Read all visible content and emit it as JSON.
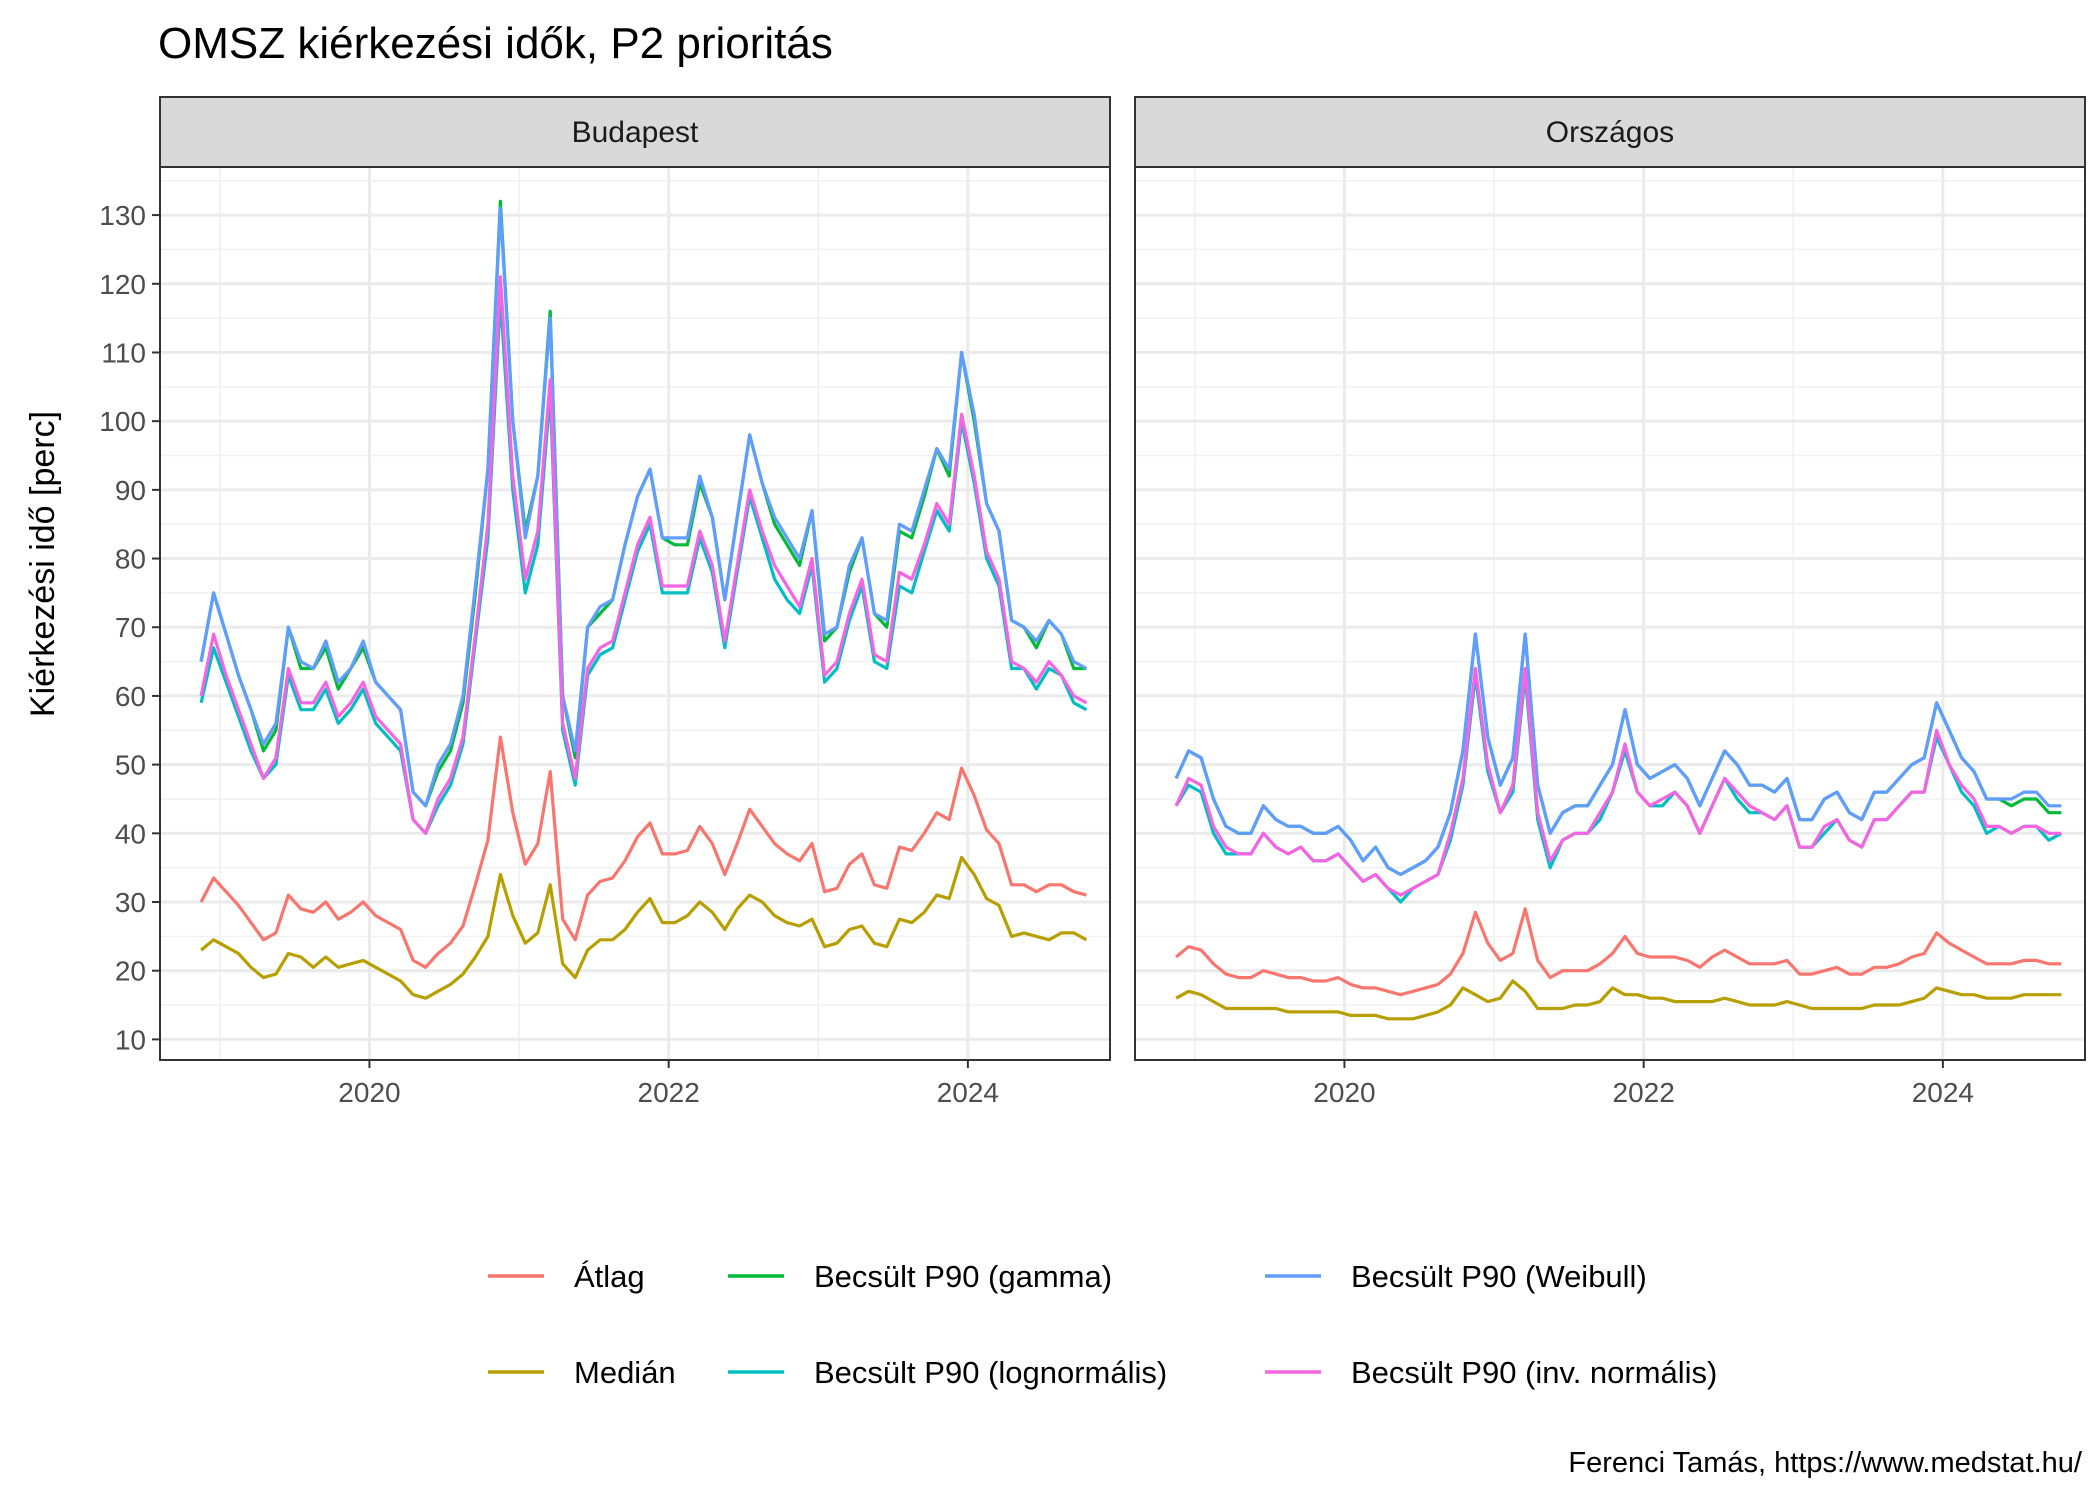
{
  "chart_data": {
    "type": "line",
    "title": "OMSZ kiérkezési idők, P2 prioritás",
    "ylabel": "Kiérkezési idő [perc]",
    "xlabel": "",
    "ylim": [
      7,
      137
    ],
    "yticks": [
      10,
      20,
      30,
      40,
      50,
      60,
      70,
      80,
      90,
      100,
      110,
      120,
      130
    ],
    "xlim": [
      2018.6,
      2024.95
    ],
    "xticks": [
      2020,
      2022,
      2024
    ],
    "x": [
      2018.875,
      2018.958,
      2019.042,
      2019.125,
      2019.208,
      2019.292,
      2019.375,
      2019.458,
      2019.542,
      2019.625,
      2019.708,
      2019.792,
      2019.875,
      2019.958,
      2020.042,
      2020.125,
      2020.208,
      2020.292,
      2020.375,
      2020.458,
      2020.542,
      2020.625,
      2020.708,
      2020.792,
      2020.875,
      2020.958,
      2021.042,
      2021.125,
      2021.208,
      2021.292,
      2021.375,
      2021.458,
      2021.542,
      2021.625,
      2021.708,
      2021.792,
      2021.875,
      2021.958,
      2022.042,
      2022.125,
      2022.208,
      2022.292,
      2022.375,
      2022.458,
      2022.542,
      2022.625,
      2022.708,
      2022.792,
      2022.875,
      2022.958,
      2023.042,
      2023.125,
      2023.208,
      2023.292,
      2023.375,
      2023.458,
      2023.542,
      2023.625,
      2023.708,
      2023.792,
      2023.875,
      2023.958,
      2024.042,
      2024.125,
      2024.208,
      2024.292,
      2024.375,
      2024.458,
      2024.542,
      2024.625,
      2024.708,
      2024.792
    ],
    "legend_position": "bottom",
    "grid": true,
    "panels": [
      {
        "name": "Budapest",
        "series": [
          {
            "name": "Átlag",
            "color": "#F8766D",
            "values": [
              30,
              33.5,
              31.5,
              29.5,
              27,
              24.5,
              25.5,
              31,
              29,
              28.5,
              30,
              27.5,
              28.5,
              30,
              28,
              27,
              26,
              21.5,
              20.5,
              22.5,
              24,
              26.5,
              32.5,
              39,
              54,
              43,
              35.5,
              38.5,
              49,
              27.5,
              24.5,
              31,
              33,
              33.5,
              36,
              39.5,
              41.5,
              37,
              37,
              37.5,
              41,
              38.5,
              34,
              38.5,
              43.5,
              41,
              38.5,
              37,
              36,
              38.5,
              31.5,
              32,
              35.5,
              37,
              32.5,
              32,
              38,
              37.5,
              40,
              43,
              42,
              49.5,
              45.5,
              40.5,
              38.5,
              32.5,
              32.5,
              31.5,
              32.5,
              32.5,
              31.5,
              31
            ]
          },
          {
            "name": "Medián",
            "color": "#B79F00",
            "values": [
              23,
              24.5,
              23.5,
              22.5,
              20.5,
              19,
              19.5,
              22.5,
              22,
              20.5,
              22,
              20.5,
              21,
              21.5,
              20.5,
              19.5,
              18.5,
              16.5,
              16,
              17,
              18,
              19.5,
              22,
              25,
              34,
              28,
              24,
              25.5,
              32.5,
              21,
              19,
              23,
              24.5,
              24.5,
              26,
              28.5,
              30.5,
              27,
              27,
              28,
              30,
              28.5,
              26,
              29,
              31,
              30,
              28,
              27,
              26.5,
              27.5,
              23.5,
              24,
              26,
              26.5,
              24,
              23.5,
              27.5,
              27,
              28.5,
              31,
              30.5,
              36.5,
              34,
              30.5,
              29.5,
              25,
              25.5,
              25,
              24.5,
              25.5,
              25.5,
              24.5
            ]
          },
          {
            "name": "Becsült P90 (gamma)",
            "color": "#00BA38",
            "values": [
              65,
              75,
              69,
              63,
              58,
              52,
              55,
              70,
              64,
              64,
              67,
              61,
              64,
              67,
              62,
              60,
              58,
              46,
              44,
              49,
              52,
              59,
              75,
              93,
              132,
              100,
              84,
              92,
              116,
              60,
              51,
              70,
              72,
              74,
              82,
              89,
              93,
              83,
              82,
              82,
              91,
              86,
              74,
              86,
              98,
              91,
              85,
              82,
              79,
              87,
              68,
              70,
              78,
              83,
              72,
              70,
              84,
              83,
              89,
              96,
              92,
              110,
              100,
              88,
              84,
              71,
              70,
              67,
              71,
              69,
              64,
              64
            ]
          },
          {
            "name": "Becsült P90 (lognormális)",
            "color": "#00BFC4",
            "values": [
              59,
              67,
              62,
              57,
              52,
              48,
              50,
              63,
              58,
              58,
              61,
              56,
              58,
              61,
              56,
              54,
              52,
              42,
              40,
              44,
              47,
              53,
              68,
              83,
              118,
              90,
              75,
              82,
              104,
              55,
              47,
              63,
              66,
              67,
              74,
              81,
              85,
              75,
              75,
              75,
              83,
              78,
              67,
              78,
              89,
              83,
              77,
              74,
              72,
              79,
              62,
              64,
              71,
              76,
              65,
              64,
              76,
              75,
              81,
              87,
              84,
              100,
              91,
              80,
              76,
              64,
              64,
              61,
              64,
              63,
              59,
              58
            ]
          },
          {
            "name": "Becsült P90 (Weibull)",
            "color": "#619CFF",
            "values": [
              65,
              75,
              69,
              63,
              58,
              53,
              56,
              70,
              65,
              64,
              68,
              62,
              64,
              68,
              62,
              60,
              58,
              46,
              44,
              50,
              53,
              60,
              76,
              93,
              131,
              100,
              83,
              92,
              115,
              60,
              52,
              70,
              73,
              74,
              82,
              89,
              93,
              83,
              83,
              83,
              92,
              86,
              74,
              86,
              98,
              91,
              86,
              83,
              80,
              87,
              69,
              70,
              79,
              83,
              72,
              71,
              85,
              84,
              90,
              96,
              93,
              110,
              101,
              88,
              84,
              71,
              70,
              68,
              71,
              69,
              65,
              64
            ]
          },
          {
            "name": "Becsült P90 (inv. normális)",
            "color": "#F564E3",
            "values": [
              60,
              69,
              63,
              58,
              53,
              48,
              51,
              64,
              59,
              59,
              62,
              57,
              59,
              62,
              57,
              55,
              53,
              42,
              40,
              45,
              48,
              54,
              69,
              85,
              121,
              92,
              77,
              84,
              106,
              56,
              48,
              64,
              67,
              68,
              75,
              82,
              86,
              76,
              76,
              76,
              84,
              79,
              68,
              79,
              90,
              84,
              79,
              76,
              73,
              80,
              63,
              65,
              72,
              77,
              66,
              65,
              78,
              77,
              82,
              88,
              85,
              101,
              92,
              81,
              77,
              65,
              64,
              62,
              65,
              63,
              60,
              59
            ]
          }
        ]
      },
      {
        "name": "Országos",
        "series": [
          {
            "name": "Átlag",
            "color": "#F8766D",
            "values": [
              22,
              23.5,
              23,
              21,
              19.5,
              19,
              19,
              20,
              19.5,
              19,
              19,
              18.5,
              18.5,
              19,
              18,
              17.5,
              17.5,
              17,
              16.5,
              17,
              17.5,
              18,
              19.5,
              22.5,
              28.5,
              24,
              21.5,
              22.5,
              29,
              21.5,
              19,
              20,
              20,
              20,
              21,
              22.5,
              25,
              22.5,
              22,
              22,
              22,
              21.5,
              20.5,
              22,
              23,
              22,
              21,
              21,
              21,
              21.5,
              19.5,
              19.5,
              20,
              20.5,
              19.5,
              19.5,
              20.5,
              20.5,
              21,
              22,
              22.5,
              25.5,
              24,
              23,
              22,
              21,
              21,
              21,
              21.5,
              21.5,
              21,
              21
            ]
          },
          {
            "name": "Medián",
            "color": "#B79F00",
            "values": [
              16,
              17,
              16.5,
              15.5,
              14.5,
              14.5,
              14.5,
              14.5,
              14.5,
              14,
              14,
              14,
              14,
              14,
              13.5,
              13.5,
              13.5,
              13,
              13,
              13,
              13.5,
              14,
              15,
              17.5,
              16.5,
              15.5,
              16,
              18.5,
              17,
              14.5,
              14.5,
              14.5,
              15,
              15,
              15.5,
              17.5,
              16.5,
              16.5,
              16,
              16,
              15.5,
              15.5,
              15.5,
              15.5,
              16,
              15.5,
              15,
              15,
              15,
              15.5,
              15,
              14.5,
              14.5,
              14.5,
              14.5,
              14.5,
              15,
              15,
              15,
              15.5,
              16,
              17.5,
              17,
              16.5,
              16.5,
              16,
              16,
              16,
              16.5,
              16.5,
              16.5,
              16.5
            ]
          },
          {
            "name": "Becsült P90 (gamma)",
            "color": "#00BA38",
            "values": [
              48,
              52,
              51,
              45,
              41,
              40,
              40,
              44,
              42,
              41,
              41,
              40,
              40,
              41,
              39,
              36,
              38,
              35,
              34,
              35,
              36,
              38,
              43,
              52,
              69,
              54,
              47,
              51,
              69,
              47,
              40,
              43,
              44,
              44,
              47,
              50,
              58,
              50,
              48,
              49,
              50,
              48,
              44,
              48,
              52,
              50,
              47,
              47,
              46,
              48,
              42,
              42,
              45,
              46,
              43,
              42,
              46,
              46,
              48,
              50,
              51,
              59,
              55,
              51,
              49,
              45,
              45,
              44,
              45,
              45,
              43,
              43
            ]
          },
          {
            "name": "Becsült P90 (lognormális)",
            "color": "#00BFC4",
            "values": [
              44,
              47,
              46,
              40,
              37,
              37,
              37,
              40,
              38,
              37,
              38,
              36,
              36,
              37,
              35,
              33,
              34,
              32,
              30,
              32,
              33,
              34,
              39,
              47,
              63,
              49,
              43,
              46,
              63,
              42,
              35,
              39,
              40,
              40,
              42,
              46,
              52,
              46,
              44,
              44,
              46,
              44,
              40,
              44,
              48,
              45,
              43,
              43,
              42,
              44,
              38,
              38,
              40,
              42,
              39,
              38,
              42,
              42,
              44,
              46,
              46,
              54,
              50,
              46,
              44,
              40,
              41,
              40,
              41,
              41,
              39,
              40
            ]
          },
          {
            "name": "Becsült P90 (Weibull)",
            "color": "#619CFF",
            "values": [
              48,
              52,
              51,
              45,
              41,
              40,
              40,
              44,
              42,
              41,
              41,
              40,
              40,
              41,
              39,
              36,
              38,
              35,
              34,
              35,
              36,
              38,
              43,
              52,
              69,
              54,
              47,
              51,
              69,
              47,
              40,
              43,
              44,
              44,
              47,
              50,
              58,
              50,
              48,
              49,
              50,
              48,
              44,
              48,
              52,
              50,
              47,
              47,
              46,
              48,
              42,
              42,
              45,
              46,
              43,
              42,
              46,
              46,
              48,
              50,
              51,
              59,
              55,
              51,
              49,
              45,
              45,
              45,
              46,
              46,
              44,
              44
            ]
          },
          {
            "name": "Becsült P90 (inv. normális)",
            "color": "#F564E3",
            "values": [
              44,
              48,
              47,
              41,
              38,
              37,
              37,
              40,
              38,
              37,
              38,
              36,
              36,
              37,
              35,
              33,
              34,
              32,
              31,
              32,
              33,
              34,
              40,
              48,
              64,
              50,
              43,
              47,
              64,
              43,
              36,
              39,
              40,
              40,
              43,
              46,
              53,
              46,
              44,
              45,
              46,
              44,
              40,
              44,
              48,
              46,
              44,
              43,
              42,
              44,
              38,
              38,
              41,
              42,
              39,
              38,
              42,
              42,
              44,
              46,
              46,
              55,
              50,
              47,
              45,
              41,
              41,
              40,
              41,
              41,
              40,
              40
            ]
          }
        ]
      }
    ]
  },
  "caption": "Ferenci Tamás, https://www.medstat.hu/"
}
